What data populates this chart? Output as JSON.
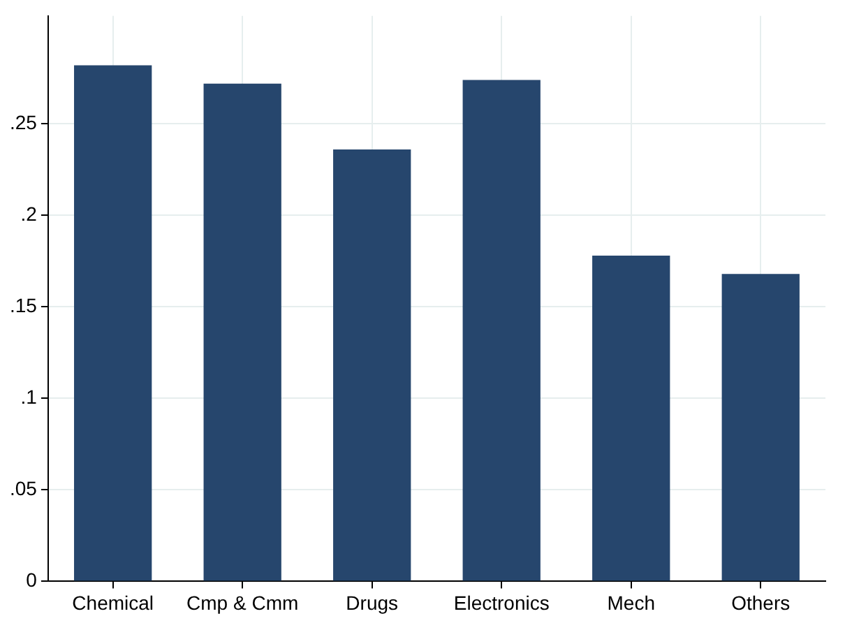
{
  "chart_data": {
    "type": "bar",
    "categories": [
      "Chemical",
      "Cmp & Cmm",
      "Drugs",
      "Electronics",
      "Mech",
      "Others"
    ],
    "values": [
      0.282,
      0.272,
      0.236,
      0.274,
      0.178,
      0.168
    ],
    "color": "#26466d",
    "ylim": [
      0,
      0.309
    ],
    "yticks": [
      {
        "value": 0,
        "label": "0"
      },
      {
        "value": 0.05,
        "label": ".05"
      },
      {
        "value": 0.1,
        "label": ".1"
      },
      {
        "value": 0.15,
        "label": ".15"
      },
      {
        "value": 0.2,
        "label": ".2"
      },
      {
        "value": 0.25,
        "label": ".25"
      }
    ],
    "grid": true,
    "legend": false
  }
}
